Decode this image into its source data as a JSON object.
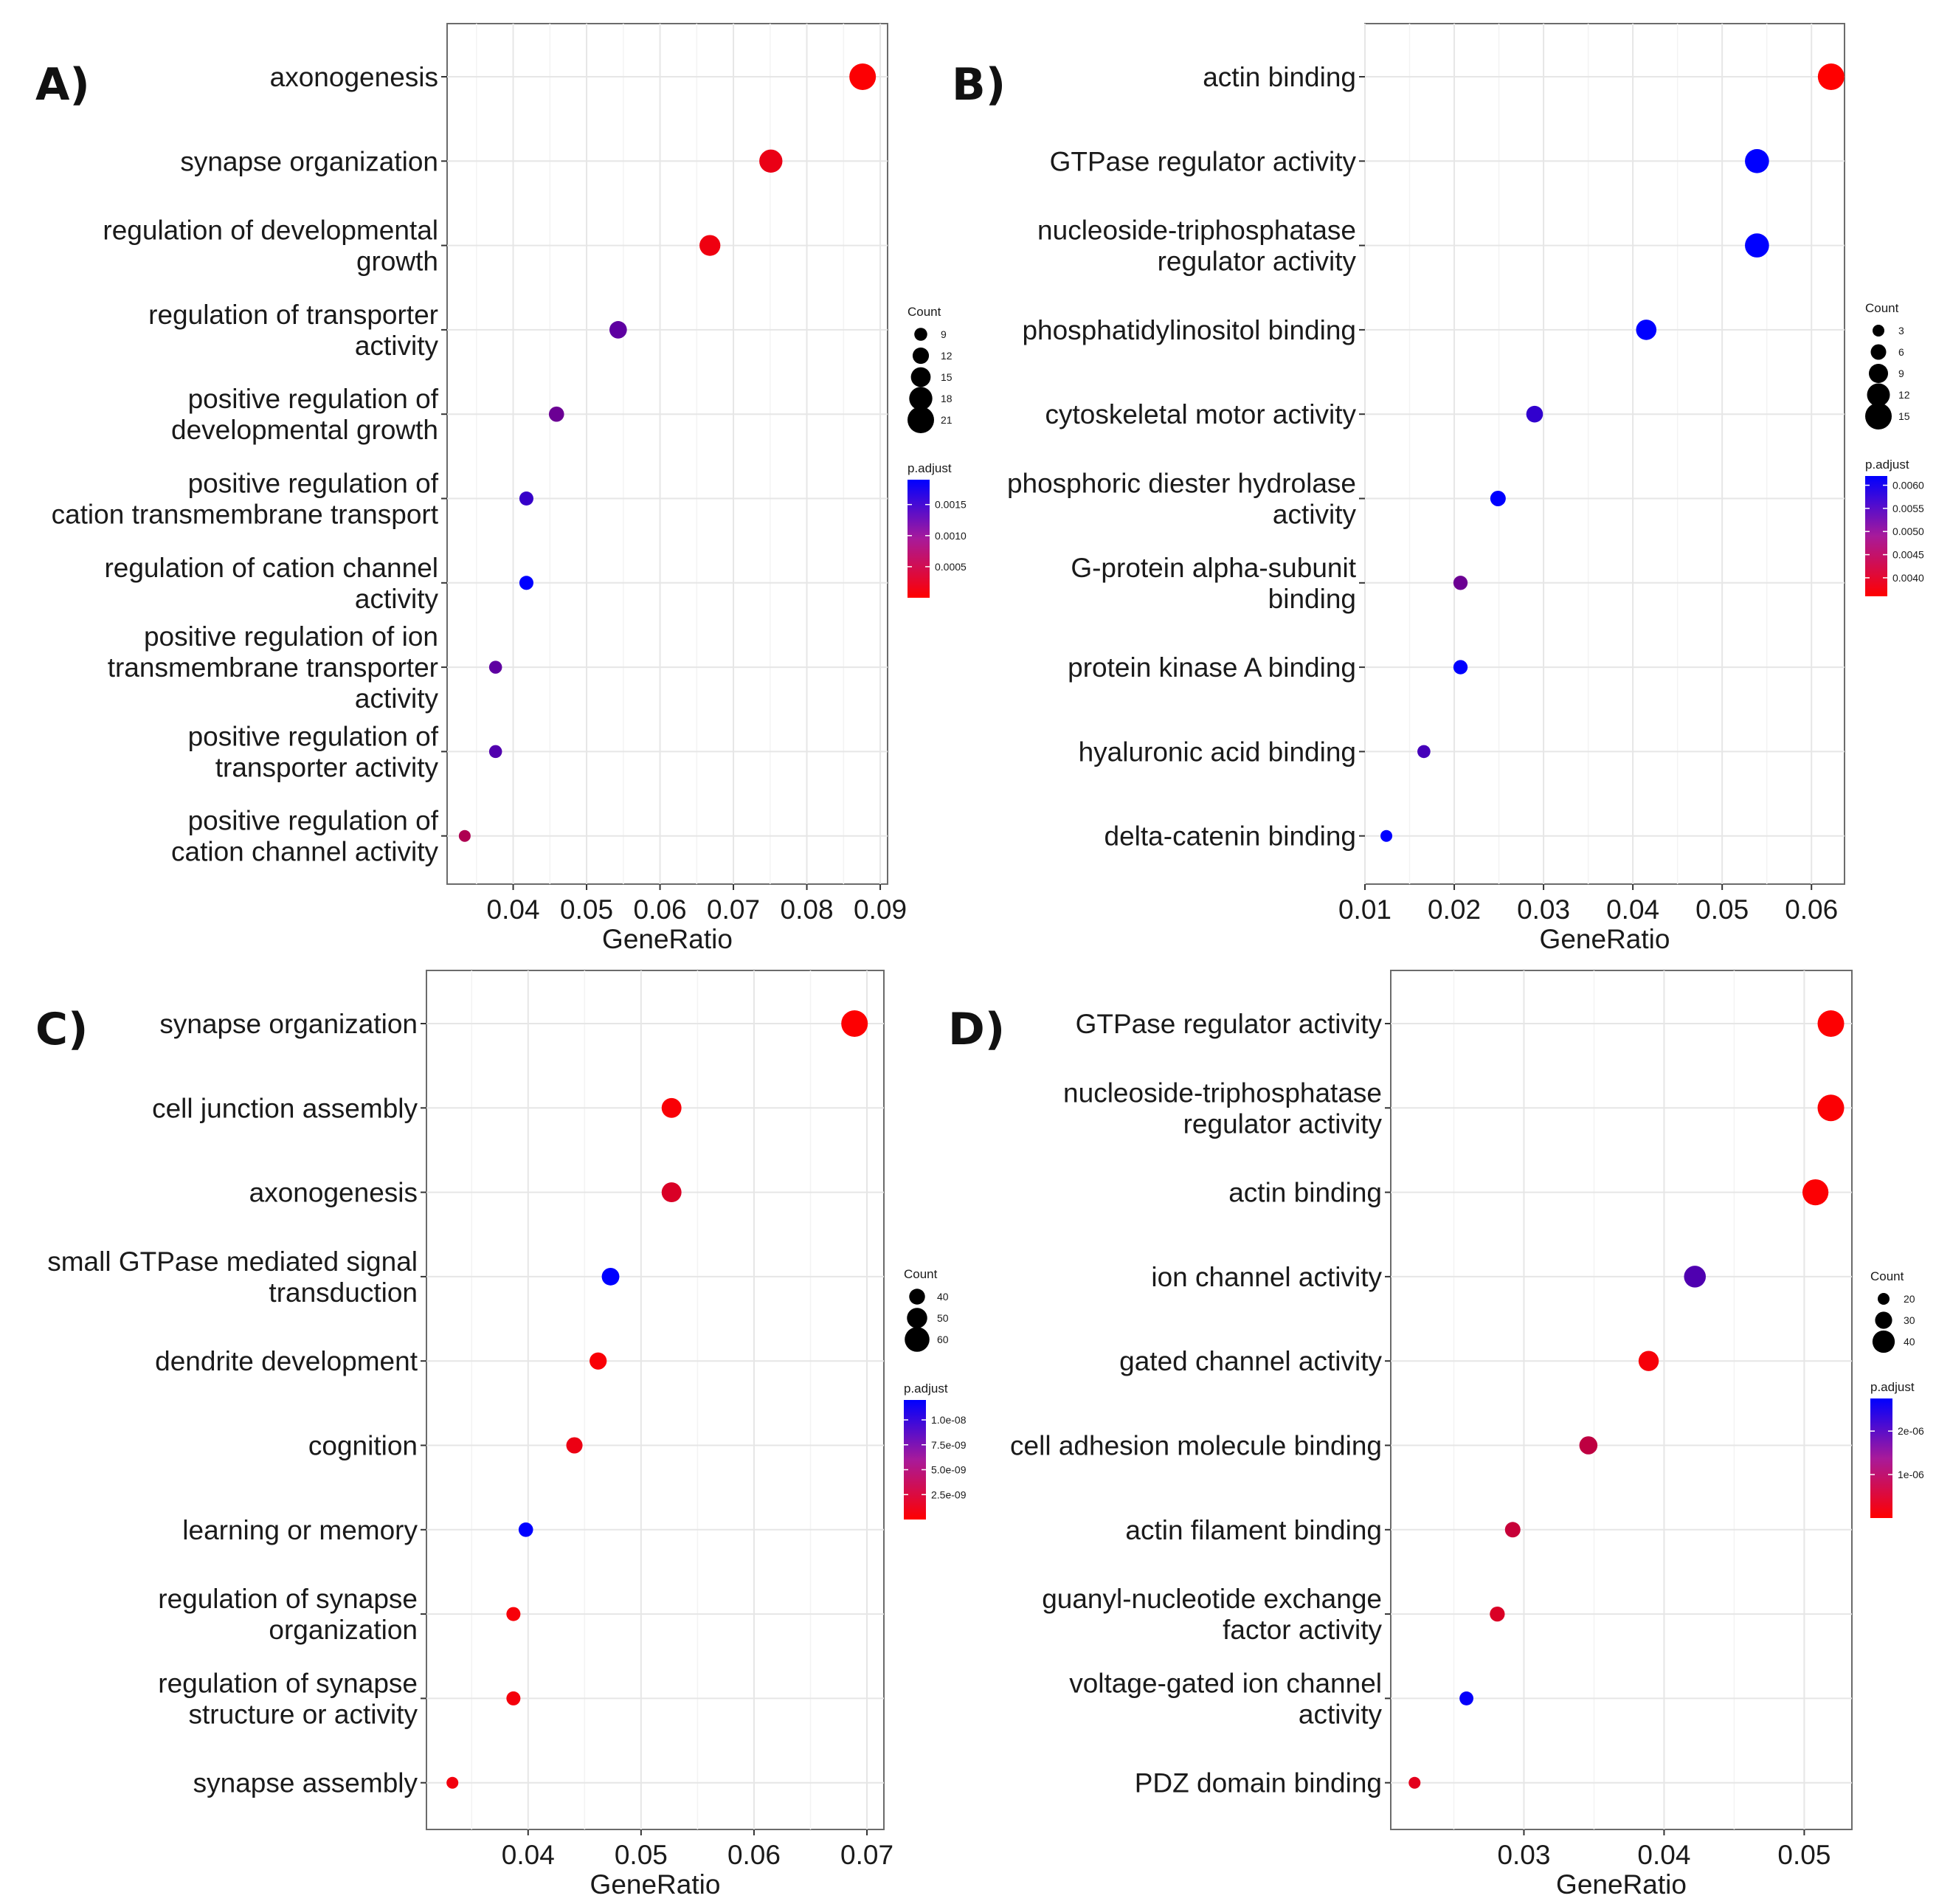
{
  "chart_data": [
    {
      "type": "scatter",
      "panel_label": "A)",
      "xlabel": "GeneRatio",
      "xlim": [
        0.031,
        0.091
      ],
      "xticks": [
        0.04,
        0.05,
        0.06,
        0.07,
        0.08,
        0.09
      ],
      "grid": true,
      "categories": [
        "axonogenesis",
        "synapse organization",
        "regulation of developmental\ngrowth",
        "regulation of transporter\nactivity",
        "positive regulation of\ndevelopmental growth",
        "positive regulation of\ncation transmembrane transport",
        "regulation of cation channel\nactivity",
        "positive regulation of ion\ntransmembrane transporter\nactivity",
        "positive regulation of\ntransporter activity",
        "positive regulation of\ncation channel activity"
      ],
      "gene_ratio": [
        0.0876,
        0.0751,
        0.0668,
        0.0543,
        0.0459,
        0.0418,
        0.0418,
        0.0376,
        0.0376,
        0.0334
      ],
      "count": [
        21,
        18,
        16,
        13,
        11,
        10,
        10,
        9,
        9,
        8
      ],
      "p_adjust": [
        2e-05,
        0.00016,
        0.00012,
        0.0012,
        0.0011,
        0.0015,
        0.0019,
        0.0012,
        0.0013,
        0.0006
      ],
      "size_legend": {
        "title": "Count",
        "values": [
          9,
          12,
          15,
          18,
          21
        ],
        "labels": [
          "9",
          "12",
          "15",
          "18",
          "21"
        ]
      },
      "color_legend": {
        "title": "p.adjust",
        "range": [
          0.0,
          0.0019
        ],
        "ticks": [
          0.0015,
          0.001,
          0.0005
        ],
        "tick_labels": [
          "0.0015",
          "0.0010",
          "0.0005"
        ],
        "low_color": "#ff0000",
        "high_color": "#0000ff"
      }
    },
    {
      "type": "scatter",
      "panel_label": "B)",
      "xlabel": "GeneRatio",
      "xlim": [
        0.01,
        0.0637
      ],
      "xticks": [
        0.01,
        0.02,
        0.03,
        0.04,
        0.05,
        0.06
      ],
      "grid": true,
      "categories": [
        "actin binding",
        "GTPase regulator activity",
        "nucleoside-triphosphatase\nregulator activity",
        "phosphatidylinositol binding",
        "cytoskeletal motor activity",
        "phosphoric diester hydrolase\nactivity",
        "G-protein alpha-subunit\nbinding",
        "protein kinase A binding",
        "hyaluronic acid binding",
        "delta-catenin binding"
      ],
      "gene_ratio": [
        0.0622,
        0.0539,
        0.0539,
        0.0415,
        0.029,
        0.0249,
        0.0207,
        0.0207,
        0.0166,
        0.0124
      ],
      "count": [
        15,
        13,
        13,
        10,
        7,
        6,
        5,
        5,
        4,
        3
      ],
      "p_adjust": [
        0.0036,
        0.0062,
        0.0062,
        0.0062,
        0.0057,
        0.0062,
        0.0051,
        0.0062,
        0.0055,
        0.0062
      ],
      "size_legend": {
        "title": "Count",
        "values": [
          3,
          6,
          9,
          12,
          15
        ],
        "labels": [
          "3",
          "6",
          "9",
          "12",
          "15"
        ]
      },
      "color_legend": {
        "title": "p.adjust",
        "range": [
          0.0036,
          0.0062
        ],
        "ticks": [
          0.006,
          0.0055,
          0.005,
          0.0045,
          0.004
        ],
        "tick_labels": [
          "0.0060",
          "0.0055",
          "0.0050",
          "0.0045",
          "0.0040"
        ],
        "low_color": "#ff0000",
        "high_color": "#0000ff"
      }
    },
    {
      "type": "scatter",
      "panel_label": "C)",
      "xlabel": "GeneRatio",
      "xlim": [
        0.031,
        0.0715
      ],
      "xticks": [
        0.04,
        0.05,
        0.06,
        0.07
      ],
      "grid": true,
      "categories": [
        "synapse organization",
        "cell junction assembly",
        "axonogenesis",
        "small GTPase mediated signal\ntransduction",
        "dendrite development",
        "cognition",
        "learning or memory",
        "regulation of synapse\norganization",
        "regulation of synapse\nstructure or activity",
        "synapse assembly"
      ],
      "gene_ratio": [
        0.0689,
        0.0527,
        0.0527,
        0.0473,
        0.0462,
        0.0441,
        0.0398,
        0.0387,
        0.0387,
        0.0333
      ],
      "count": [
        64,
        49,
        49,
        44,
        43,
        41,
        37,
        36,
        36,
        31
      ],
      "p_adjust": [
        1e-10,
        3e-10,
        1.8e-09,
        1.2e-08,
        3e-10,
        9e-10,
        1.2e-08,
        4e-10,
        5e-10,
        6e-10
      ],
      "size_legend": {
        "title": "Count",
        "values": [
          40,
          50,
          60
        ],
        "labels": [
          "40",
          "50",
          "60"
        ]
      },
      "color_legend": {
        "title": "p.adjust",
        "range": [
          0.0,
          1.2e-08
        ],
        "ticks": [
          1e-08,
          7.5e-09,
          5e-09,
          2.5e-09
        ],
        "tick_labels": [
          "1.0e-08",
          "7.5e-09",
          "5.0e-09",
          "2.5e-09"
        ],
        "low_color": "#ff0000",
        "high_color": "#0000ff"
      }
    },
    {
      "type": "scatter",
      "panel_label": "D)",
      "xlabel": "GeneRatio",
      "xlim": [
        0.0205,
        0.0534
      ],
      "xticks": [
        0.03,
        0.04,
        0.05
      ],
      "grid": true,
      "categories": [
        "GTPase regulator activity",
        "nucleoside-triphosphatase\nregulator activity",
        "actin binding",
        "ion channel activity",
        "gated channel activity",
        "cell adhesion molecule binding",
        "actin filament binding",
        "guanyl-nucleotide exchange\nfactor activity",
        "voltage-gated ion channel\nactivity",
        "PDZ domain binding"
      ],
      "gene_ratio": [
        0.0519,
        0.0519,
        0.0508,
        0.0422,
        0.0389,
        0.0346,
        0.0292,
        0.0281,
        0.0259,
        0.0222
      ],
      "count": [
        48,
        48,
        47,
        39,
        36,
        32,
        27,
        26,
        24,
        20
      ],
      "p_adjust": [
        2e-08,
        4e-08,
        3e-08,
        1.9e-06,
        1e-07,
        7e-07,
        6e-07,
        4e-07,
        2.7e-06,
        3e-07
      ],
      "size_legend": {
        "title": "Count",
        "values": [
          20,
          30,
          40
        ],
        "labels": [
          "20",
          "30",
          "40"
        ]
      },
      "color_legend": {
        "title": "p.adjust",
        "range": [
          0.0,
          2.75e-06
        ],
        "ticks": [
          2e-06,
          1e-06
        ],
        "tick_labels": [
          "2e-06",
          "1e-06"
        ],
        "low_color": "#ff0000",
        "high_color": "#0000ff"
      }
    }
  ]
}
